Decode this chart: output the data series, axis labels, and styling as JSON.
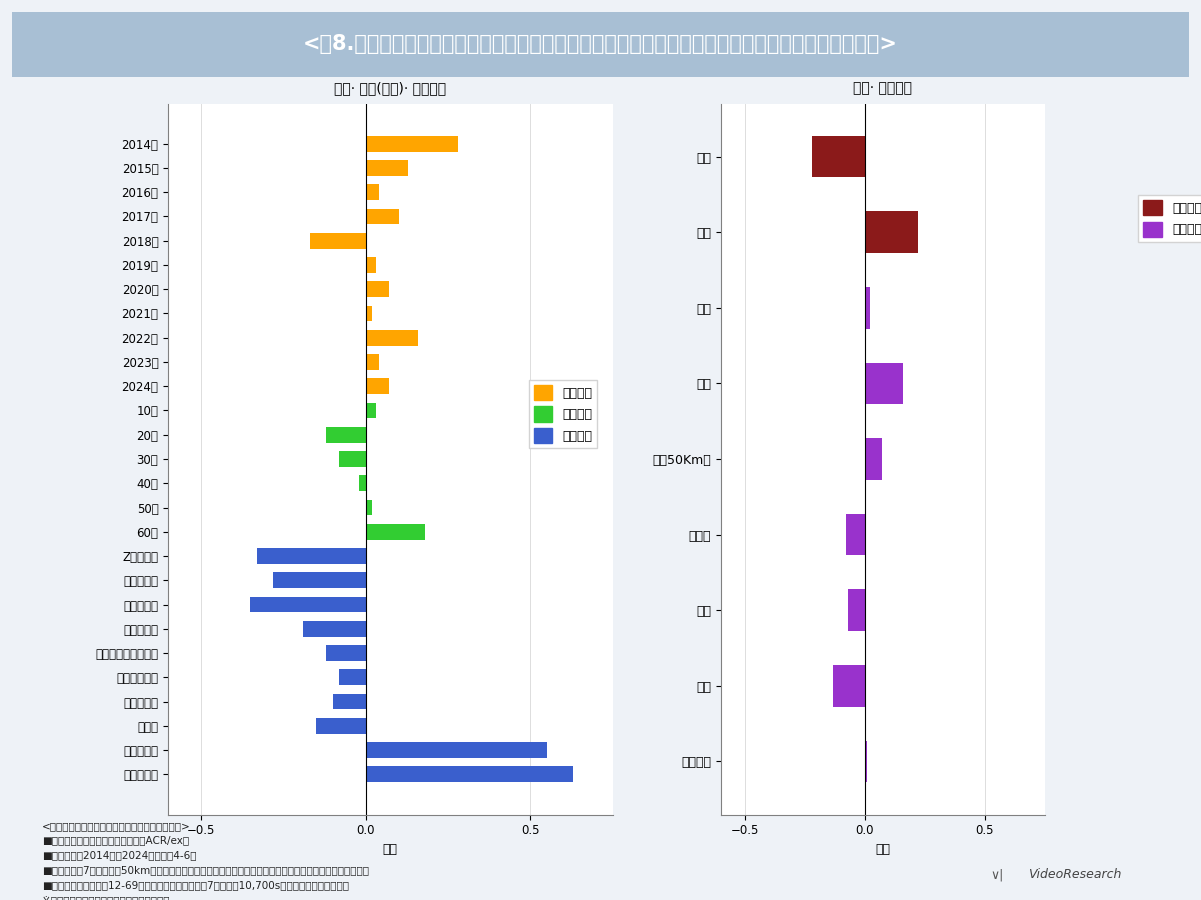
{
  "title": "<図8.「環境保護を考えた商品をなるべく買うようにしている」意識データのコーホート分析の結果>",
  "title_bg": "#a8bfd4",
  "title_color": "white",
  "left_title": "時代· 加齢(年齢)· 世代効果",
  "right_title": "性別· 地域効果",
  "xlabel": "係数",
  "left_categories": [
    "2014年",
    "2015年",
    "2016年",
    "2017年",
    "2018年",
    "2019年",
    "2020年",
    "2021年",
    "2022年",
    "2023年",
    "2024年",
    "10代",
    "20代",
    "30代",
    "40代",
    "50代",
    "60代",
    "Z世代以降",
    "さとり世代",
    "ゆとり世代",
    "はざま世代",
    "ポスト団塊ジュニア",
    "団塊ジュニア",
    "バブル世代",
    "新人類",
    "しらけ世代",
    "団塊の世代"
  ],
  "left_values": [
    0.28,
    0.13,
    0.04,
    0.1,
    -0.17,
    0.03,
    0.07,
    0.02,
    0.16,
    0.04,
    0.07,
    0.03,
    -0.12,
    -0.08,
    -0.02,
    0.02,
    0.18,
    -0.33,
    -0.28,
    -0.35,
    -0.19,
    -0.12,
    -0.08,
    -0.1,
    -0.15,
    0.55,
    0.63
  ],
  "left_colors": [
    "#FFA500",
    "#FFA500",
    "#FFA500",
    "#FFA500",
    "#FFA500",
    "#FFA500",
    "#FFA500",
    "#FFA500",
    "#FFA500",
    "#FFA500",
    "#FFA500",
    "#32CD32",
    "#32CD32",
    "#32CD32",
    "#32CD32",
    "#32CD32",
    "#32CD32",
    "#3A5FCD",
    "#3A5FCD",
    "#3A5FCD",
    "#3A5FCD",
    "#3A5FCD",
    "#3A5FCD",
    "#3A5FCD",
    "#3A5FCD",
    "#3A5FCD",
    "#3A5FCD"
  ],
  "right_categories": [
    "男性",
    "女性",
    "札幌",
    "仙台",
    "東京50Km圏",
    "名古屋",
    "関西",
    "広島",
    "北部九州"
  ],
  "right_values": [
    -0.22,
    0.22,
    0.02,
    0.16,
    0.07,
    -0.08,
    -0.07,
    -0.13,
    0.01
  ],
  "right_colors": [
    "#8B1A1A",
    "#8B1A1A",
    "#9932CC",
    "#9932CC",
    "#9932CC",
    "#9932CC",
    "#9932CC",
    "#9932CC",
    "#9932CC"
  ],
  "bg_color": "#eef2f7",
  "plot_bg": "white",
  "grid_color": "#dddddd",
  "footer_lines": [
    "<コーホート分析のベースとなったデータの概要>",
    "■データソース：ビデオリサーチ「ACR/ex」",
    "■調査時期：2014年～2024年の各年4-6月",
    "■調査地区：7地区（東京50km圏、関西地区、名古屋地区、北部九州地区、札幌地区、仙台地区、広島地区）",
    "■調査サンプル：男女12-69歳の個人を対象に、各年7地区計約10,700s（各年の調査期間平均）",
    "※地区人口によるウェイトバック集計を実施"
  ]
}
